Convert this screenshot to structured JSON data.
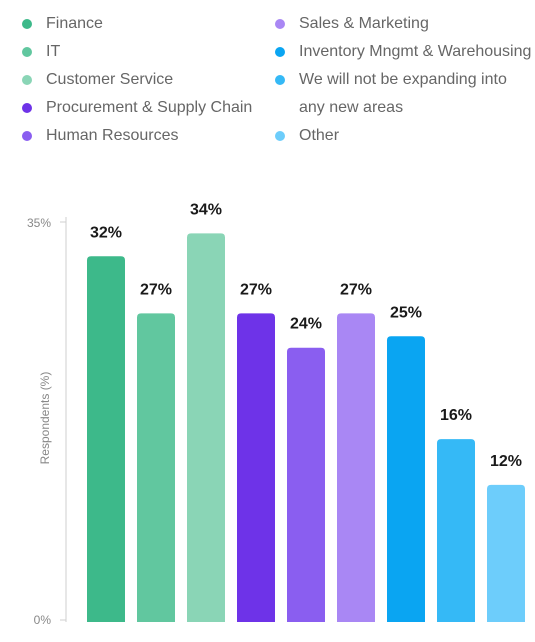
{
  "chart_data": {
    "type": "bar",
    "ylabel": "Respondents (%)",
    "ylim": [
      0,
      35
    ],
    "yticks": [
      "0%",
      "35%"
    ],
    "grid": false,
    "legend_position": "top",
    "series": [
      {
        "name": "Finance",
        "value": 32,
        "label": "32%",
        "color": "#3db98a"
      },
      {
        "name": "IT",
        "value": 27,
        "label": "27%",
        "color": "#61c79f"
      },
      {
        "name": "Customer Service",
        "value": 34,
        "label": "34%",
        "color": "#8ad5b6"
      },
      {
        "name": "Procurement & Supply Chain",
        "value": 27,
        "label": "27%",
        "color": "#6e33e8"
      },
      {
        "name": "Human Resources",
        "value": 24,
        "label": "24%",
        "color": "#8a5ef0"
      },
      {
        "name": "Sales & Marketing",
        "value": 27,
        "label": "27%",
        "color": "#a987f4"
      },
      {
        "name": "Inventory Mngmt & Warehousing",
        "value": 25,
        "label": "25%",
        "color": "#0aa5f2"
      },
      {
        "name": "We will not be expanding into",
        "name_line2": "any new areas",
        "value": 16,
        "label": "16%",
        "color": "#35b9f6"
      },
      {
        "name": "Other",
        "value": 12,
        "label": "12%",
        "color": "#6dcdfb"
      }
    ]
  }
}
